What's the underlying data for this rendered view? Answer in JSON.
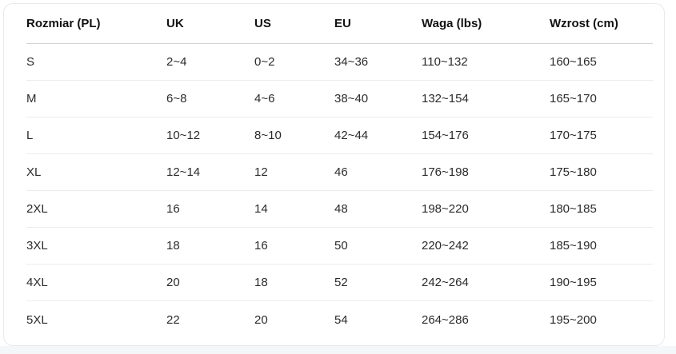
{
  "page": {
    "background_color": "#ffffff",
    "bottom_strip_color": "#f5f6f7"
  },
  "card": {
    "background_color": "#ffffff",
    "border_color": "#e9e9e9",
    "header_divider_color": "#d4d4d4",
    "row_divider_color": "#ececec",
    "header_text_color": "#111111",
    "body_text_color": "#2b2b2b"
  },
  "table": {
    "headers": [
      "Rozmiar (PL)",
      "UK",
      "US",
      "EU",
      "Waga (lbs)",
      "Wzrost (cm)"
    ],
    "rows": [
      [
        "S",
        "2~4",
        "0~2",
        "34~36",
        "110~132",
        "160~165"
      ],
      [
        "M",
        "6~8",
        "4~6",
        "38~40",
        "132~154",
        "165~170"
      ],
      [
        "L",
        "10~12",
        "8~10",
        "42~44",
        "154~176",
        "170~175"
      ],
      [
        "XL",
        "12~14",
        "12",
        "46",
        "176~198",
        "175~180"
      ],
      [
        "2XL",
        "16",
        "14",
        "48",
        "198~220",
        "180~185"
      ],
      [
        "3XL",
        "18",
        "16",
        "50",
        "220~242",
        "185~190"
      ],
      [
        "4XL",
        "20",
        "18",
        "52",
        "242~264",
        "190~195"
      ],
      [
        "5XL",
        "22",
        "20",
        "54",
        "264~286",
        "195~200"
      ]
    ]
  },
  "chart_data": {
    "type": "table",
    "title": "",
    "columns": [
      "Rozmiar (PL)",
      "UK",
      "US",
      "EU",
      "Waga (lbs)",
      "Wzrost (cm)"
    ],
    "rows": [
      {
        "rozmiar_pl": "S",
        "uk": "2~4",
        "us": "0~2",
        "eu": "34~36",
        "waga_lbs": "110~132",
        "wzrost_cm": "160~165"
      },
      {
        "rozmiar_pl": "M",
        "uk": "6~8",
        "us": "4~6",
        "eu": "38~40",
        "waga_lbs": "132~154",
        "wzrost_cm": "165~170"
      },
      {
        "rozmiar_pl": "L",
        "uk": "10~12",
        "us": "8~10",
        "eu": "42~44",
        "waga_lbs": "154~176",
        "wzrost_cm": "170~175"
      },
      {
        "rozmiar_pl": "XL",
        "uk": "12~14",
        "us": "12",
        "eu": "46",
        "waga_lbs": "176~198",
        "wzrost_cm": "175~180"
      },
      {
        "rozmiar_pl": "2XL",
        "uk": "16",
        "us": "14",
        "eu": "48",
        "waga_lbs": "198~220",
        "wzrost_cm": "180~185"
      },
      {
        "rozmiar_pl": "3XL",
        "uk": "18",
        "us": "16",
        "eu": "50",
        "waga_lbs": "220~242",
        "wzrost_cm": "185~190"
      },
      {
        "rozmiar_pl": "4XL",
        "uk": "20",
        "us": "18",
        "eu": "52",
        "waga_lbs": "242~264",
        "wzrost_cm": "190~195"
      },
      {
        "rozmiar_pl": "5XL",
        "uk": "22",
        "us": "20",
        "eu": "54",
        "waga_lbs": "264~286",
        "wzrost_cm": "195~200"
      }
    ]
  }
}
